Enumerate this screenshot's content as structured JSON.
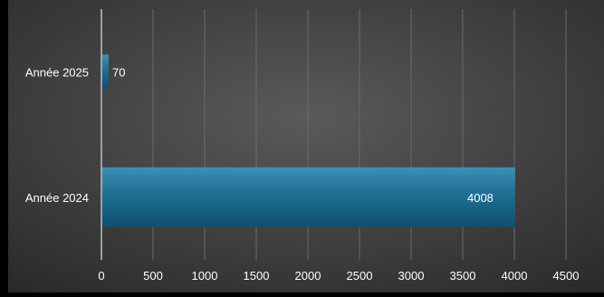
{
  "chart_data": {
    "type": "bar",
    "orientation": "horizontal",
    "categories": [
      "Année 2025",
      "Année 2024"
    ],
    "values": [
      70,
      4008
    ],
    "data_labels": [
      "70",
      "4008"
    ],
    "title": "",
    "xlabel": "",
    "ylabel": "",
    "xlim": [
      0,
      4500
    ],
    "x_ticks": [
      "0",
      "500",
      "1000",
      "1500",
      "2000",
      "2500",
      "3000",
      "3500",
      "4000",
      "4500"
    ],
    "grid": true,
    "legend": "none",
    "colors": {
      "bar": "#1f6f94",
      "bar_light": "#3d8fb5",
      "bar_dark": "#0f4f6e",
      "background": "#3a3a3a",
      "grid": "#6a6a6a",
      "text": "#ffffff"
    }
  }
}
